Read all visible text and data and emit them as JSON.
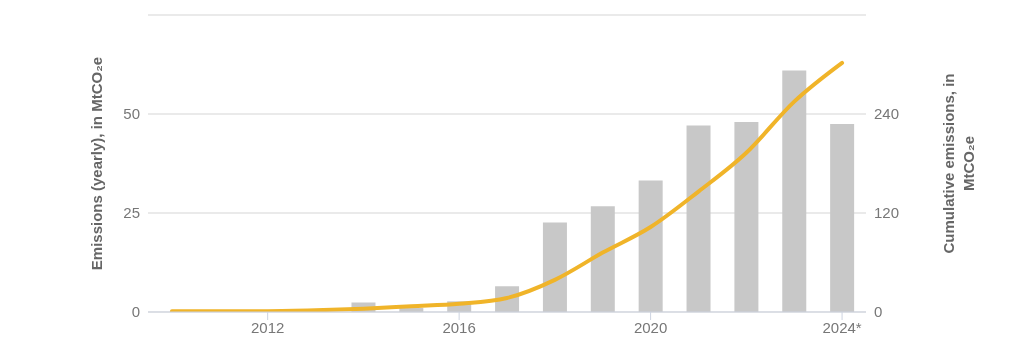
{
  "chart_data": {
    "type": "bar",
    "ylabel": "Emissions (yearly), in MtCO₂e",
    "y2label": "Cumulative emissions, in MtCO₂e",
    "categories": [
      null,
      null,
      "2012",
      null,
      null,
      null,
      "2016",
      null,
      null,
      null,
      "2020",
      null,
      null,
      null,
      "2024*"
    ],
    "series": [
      {
        "color": "#c8c8c8",
        "values": [
          0,
          0,
          0,
          0,
          2.4,
          1,
          2.7,
          6.5,
          22.6,
          26.7,
          33.2,
          47.1,
          48,
          61,
          47.5
        ]
      },
      {
        "type": "line",
        "axis": "y2",
        "color": "#f0b429",
        "values": [
          1,
          1,
          1,
          2,
          4,
          7,
          10,
          17,
          39,
          72,
          103,
          146,
          193,
          255,
          302
        ]
      }
    ],
    "ylim": [
      0,
      75
    ],
    "yticks": [
      0,
      25,
      50,
      {
        "value": 75,
        "label": null
      }
    ],
    "y2lim": [
      0,
      360
    ],
    "y2ticks": [
      0,
      120,
      240,
      {
        "value": 360,
        "label": null
      }
    ],
    "grid": "y",
    "legend": false,
    "marker": "none",
    "line_style": "solid"
  }
}
